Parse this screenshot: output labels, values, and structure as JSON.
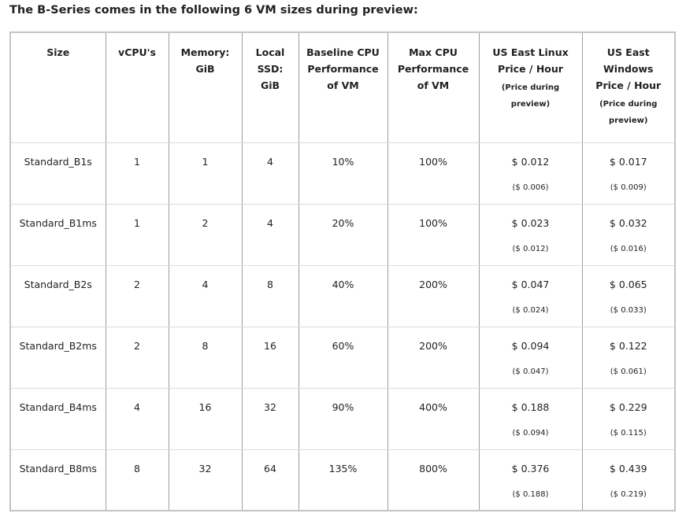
{
  "title": "The B-Series comes in the following 6 VM sizes during preview:",
  "table": {
    "header": [
      {
        "lines": [
          "Size"
        ]
      },
      {
        "lines": [
          "vCPU's"
        ]
      },
      {
        "lines": [
          "Memory:",
          "GiB"
        ]
      },
      {
        "lines": [
          "Local",
          "SSD:",
          "GiB"
        ]
      },
      {
        "lines": [
          "Baseline CPU",
          "Performance",
          "of VM"
        ]
      },
      {
        "lines": [
          "Max CPU",
          "Performance",
          "of VM"
        ]
      },
      {
        "lines": [
          "US East Linux",
          "Price / Hour"
        ],
        "note": [
          "(Price during",
          "preview)"
        ]
      },
      {
        "lines": [
          "US East",
          "Windows",
          "Price / Hour"
        ],
        "note": [
          "(Price during",
          "preview)"
        ]
      }
    ],
    "rows": [
      [
        "Standard_B1s",
        "1",
        "1",
        "4",
        "10%",
        "100%",
        {
          "price": "$ 0.012",
          "preview": "($ 0.006)"
        },
        {
          "price": "$ 0.017",
          "preview": "($ 0.009)"
        }
      ],
      [
        "Standard_B1ms",
        "1",
        "2",
        "4",
        "20%",
        "100%",
        {
          "price": "$ 0.023",
          "preview": "($ 0.012)"
        },
        {
          "price": "$ 0.032",
          "preview": "($ 0.016)"
        }
      ],
      [
        "Standard_B2s",
        "2",
        "4",
        "8",
        "40%",
        "200%",
        {
          "price": "$ 0.047",
          "preview": "($ 0.024)"
        },
        {
          "price": "$ 0.065",
          "preview": "($ 0.033)"
        }
      ],
      [
        "Standard_B2ms",
        "2",
        "8",
        "16",
        "60%",
        "200%",
        {
          "price": "$ 0.094",
          "preview": "($ 0.047)"
        },
        {
          "price": "$ 0.122",
          "preview": "($ 0.061)"
        }
      ],
      [
        "Standard_B4ms",
        "4",
        "16",
        "32",
        "90%",
        "400%",
        {
          "price": "$ 0.188",
          "preview": "($ 0.094)"
        },
        {
          "price": "$ 0.229",
          "preview": "($ 0.115)"
        }
      ],
      [
        "Standard_B8ms",
        "8",
        "32",
        "64",
        "135%",
        "800%",
        {
          "price": "$ 0.376",
          "preview": "($ 0.188)"
        },
        {
          "price": "$ 0.439",
          "preview": "($ 0.219)"
        }
      ]
    ]
  }
}
